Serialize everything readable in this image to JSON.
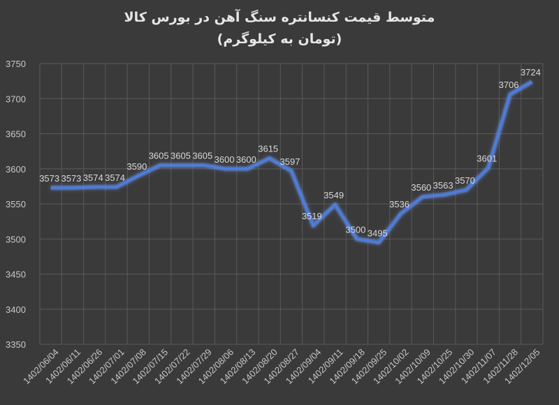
{
  "chart_data": {
    "type": "line",
    "title": "متوسط قیمت کنسانتره سنگ آهن در بورس کالا",
    "subtitle": "(تومان به کیلوگرم)",
    "xlabel": "",
    "ylabel": "",
    "ylim": [
      3350,
      3750
    ],
    "yticks": [
      3350,
      3400,
      3450,
      3500,
      3550,
      3600,
      3650,
      3700,
      3750
    ],
    "grid": true,
    "legend": "none",
    "categories": [
      "1402/06/04",
      "1402/06/11",
      "1402/06/26",
      "1402/07/01",
      "1402/07/08",
      "1402/07/15",
      "1402/07/22",
      "1402/07/29",
      "1402/08/06",
      "1402/08/13",
      "1402/08/20",
      "1402/08/27",
      "1402/09/04",
      "1402/09/11",
      "1402/09/18",
      "1402/09/25",
      "1402/10/02",
      "1402/10/09",
      "1402/10/25",
      "1402/10/30",
      "1402/11/07",
      "1402/11/28",
      "1402/12/05"
    ],
    "values": [
      3573,
      3573,
      3574,
      3574,
      3590,
      3605,
      3605,
      3605,
      3600,
      3600,
      3615,
      3597,
      3519,
      3549,
      3500,
      3495,
      3536,
      3560,
      3563,
      3570,
      3601,
      3706,
      3724
    ],
    "colors": {
      "background": "#3a3a3a",
      "line": "#4a7fe0",
      "glow": "#6f9cff",
      "grid": "#5a5a5a",
      "text": "#d9d9d9"
    }
  }
}
